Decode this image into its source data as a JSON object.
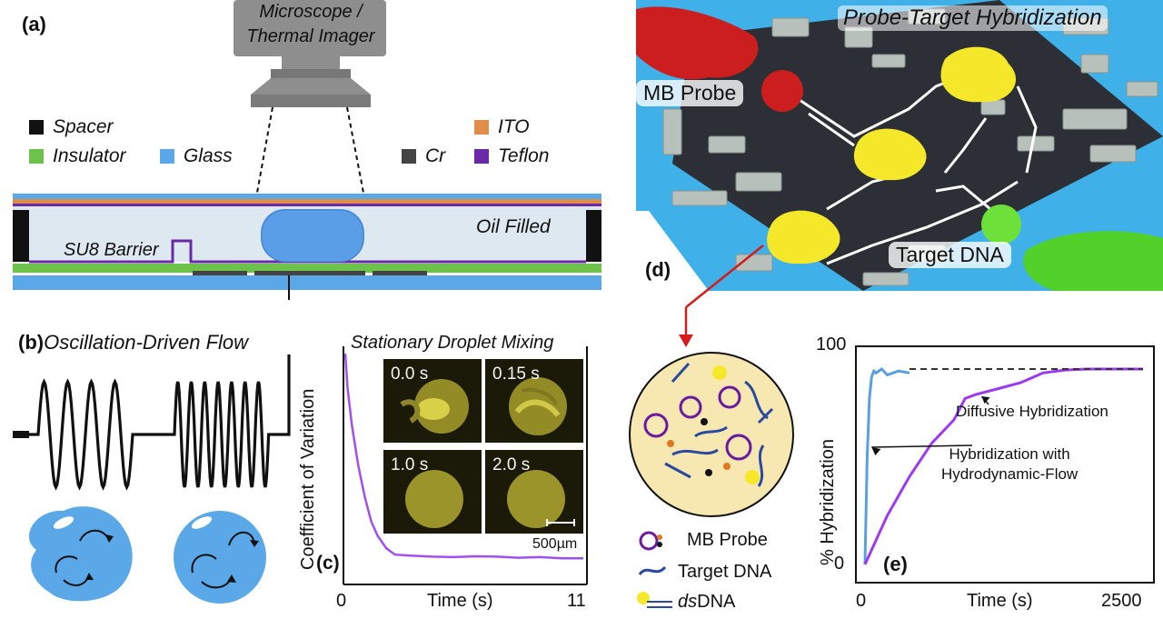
{
  "panel_a": {
    "label": "(a)",
    "camera_label_line1": "Microscope /",
    "camera_label_line2": "Thermal Imager",
    "legend": {
      "spacer": "Spacer",
      "ito": "ITO",
      "insulator": "Insulator",
      "glass": "Glass",
      "cr": "Cr",
      "teflon": "Teflon"
    },
    "su8_label": "SU8 Barrier",
    "oil_label": "Oil Filled",
    "colors": {
      "spacer": "#111111",
      "ito": "#e08c4a",
      "insulator": "#6cc24a",
      "glass": "#5aa8e8",
      "cr": "#444444",
      "teflon": "#6a2aa8"
    }
  },
  "panel_b": {
    "label": "(b)",
    "title": "Oscillation-Driven Flow"
  },
  "panel_c": {
    "label": "(c)",
    "title": "Stationary Droplet Mixing",
    "ylabel": "Coefficient of Variation",
    "xlabel": "Time (s)",
    "x_tick_min": "0",
    "x_tick_max": "11",
    "snapshots": [
      "0.0 s",
      "0.15 s",
      "1.0 s",
      "2.0 s"
    ],
    "scale_bar": "500µm"
  },
  "panel_d": {
    "label": "(d)",
    "title": "Probe-Target Hybridization",
    "mb_probe_label": "MB Probe",
    "target_label": "Target DNA",
    "legend": {
      "mb_probe": "MB Probe",
      "target_dna": "Target DNA",
      "dsdna_prefix": "ds",
      "dsdna_suffix": "DNA"
    }
  },
  "panel_e": {
    "label": "(e)",
    "ylabel": "% Hybridization",
    "xlabel": "Time (s)",
    "y_tick_top": "100",
    "y_tick_bottom": "0",
    "x_tick_min": "0",
    "x_tick_max": "2500",
    "annot_diffusive": "Diffusive Hybridization",
    "annot_flow_line1": "Hybridization with",
    "annot_flow_line2": "Hydrodynamic-Flow"
  },
  "chart_data": [
    {
      "type": "line",
      "title": "Stationary Droplet Mixing",
      "xlabel": "Time (s)",
      "ylabel": "Coefficient of Variation",
      "xlim": [
        0,
        11
      ],
      "series": [
        {
          "x": [
            0,
            0.1,
            0.3,
            0.6,
            0.9,
            1.2,
            1.5,
            1.9,
            2.3,
            3,
            4,
            5,
            6,
            7,
            8,
            9,
            10,
            11
          ],
          "y": [
            1.0,
            0.84,
            0.66,
            0.46,
            0.31,
            0.19,
            0.12,
            0.06,
            0.03,
            0.025,
            0.02,
            0.018,
            0.022,
            0.02,
            0.015,
            0.018,
            0.012,
            0.012
          ]
        }
      ],
      "colors": [
        "#a050f0"
      ]
    },
    {
      "type": "line",
      "xlabel": "Time (s)",
      "ylabel": "% Hybridization",
      "xlim": [
        0,
        2500
      ],
      "ylim": [
        0,
        100
      ],
      "series": [
        {
          "x": [
            0,
            20,
            40,
            60,
            80,
            100,
            150,
            200,
            300,
            400
          ],
          "y": [
            0,
            55,
            85,
            96,
            99,
            98,
            100,
            97,
            99,
            98
          ]
        },
        {
          "x": [
            0,
            200,
            400,
            600,
            800,
            900,
            1000,
            1200,
            1400,
            1600,
            1800,
            2000,
            2200,
            2500
          ],
          "y": [
            0,
            25,
            45,
            62,
            74,
            85,
            87,
            90,
            93,
            98,
            99.5,
            100,
            100,
            100
          ]
        },
        {
          "x": [
            400,
            2500
          ],
          "y": [
            100,
            100
          ]
        }
      ],
      "colors": [
        "#5aa0e0",
        "#9b3af0",
        "#333333"
      ]
    }
  ]
}
